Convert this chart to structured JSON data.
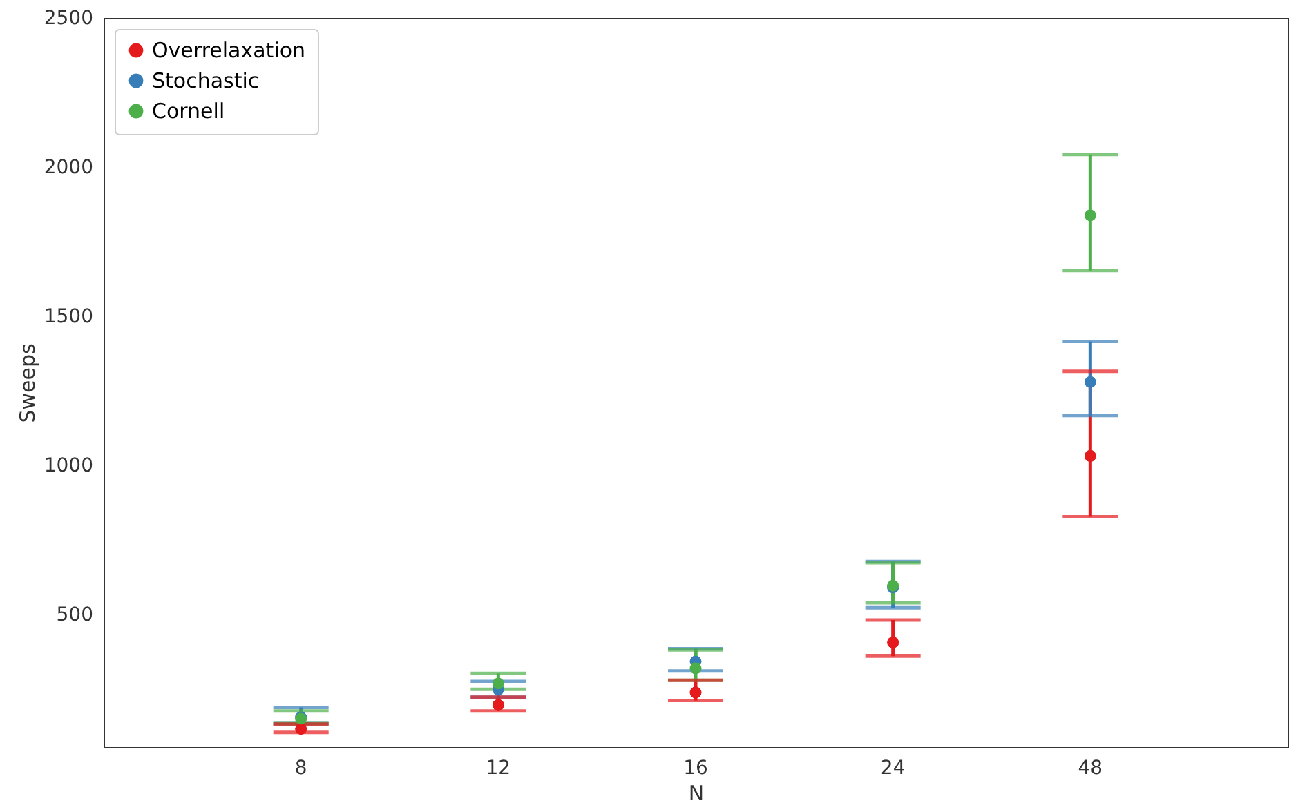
{
  "chart_data": {
    "type": "scatter",
    "xlabel": "N",
    "ylabel": "Sweeps",
    "categories": [
      "8",
      "12",
      "16",
      "24",
      "48"
    ],
    "ylim": [
      55,
      2500
    ],
    "yticks": [
      500,
      1000,
      1500,
      2000,
      2500
    ],
    "grid": false,
    "legend": "top left",
    "marker": "circle",
    "series": [
      {
        "name": "Overrelaxation",
        "color": "#e41a1c",
        "values": [
          116,
          196,
          238,
          406,
          1031
        ],
        "errors": [
          [
            104,
            132
          ],
          [
            176,
            222
          ],
          [
            211,
            279
          ],
          [
            360,
            481
          ],
          [
            827,
            1315
          ]
        ]
      },
      {
        "name": "Stochastic",
        "color": "#377eb8",
        "values": [
          155,
          248,
          342,
          590,
          1279
        ],
        "errors": [
          [
            134,
            188
          ],
          [
            222,
            275
          ],
          [
            310,
            385
          ],
          [
            522,
            677
          ],
          [
            1167,
            1415
          ]
        ]
      },
      {
        "name": "Cornell",
        "color": "#4daf4a",
        "values": [
          150,
          268,
          319,
          596,
          1838
        ],
        "errors": [
          [
            134,
            176
          ],
          [
            249,
            302
          ],
          [
            279,
            381
          ],
          [
            539,
            673
          ],
          [
            1653,
            2042
          ]
        ]
      }
    ]
  }
}
